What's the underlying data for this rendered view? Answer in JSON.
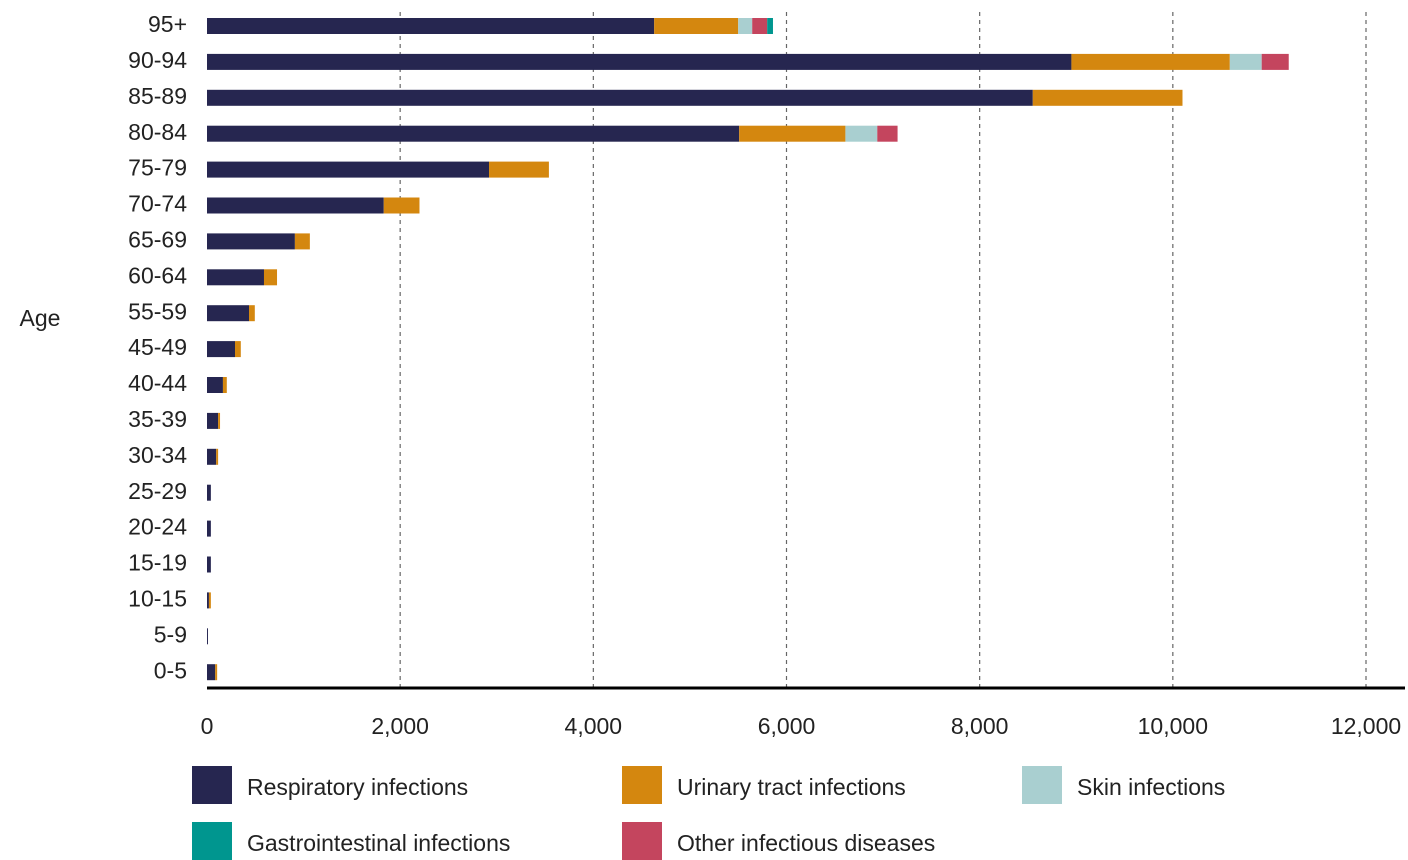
{
  "chart_data": {
    "type": "bar",
    "orientation": "horizontal",
    "stacked": true,
    "ylabel": "Age",
    "categories": [
      "95+",
      "90-94",
      "85-89",
      "80-84",
      "75-79",
      "70-74",
      "65-69",
      "60-64",
      "55-59",
      "45-49",
      "40-44",
      "35-39",
      "30-34",
      "25-29",
      "20-24",
      "15-19",
      "10-15",
      "5-9",
      "0-5"
    ],
    "series": [
      {
        "name": "Respiratory infections",
        "color": "#262650",
        "values": [
          4630,
          8950,
          8550,
          5510,
          2920,
          1830,
          910,
          590,
          435,
          290,
          165,
          115,
          95,
          40,
          40,
          40,
          20,
          10,
          85
        ]
      },
      {
        "name": "Urinary tract infections",
        "color": "#d4870f",
        "values": [
          870,
          1640,
          1550,
          1100,
          620,
          370,
          155,
          135,
          60,
          60,
          40,
          20,
          20,
          0,
          0,
          0,
          20,
          0,
          20
        ]
      },
      {
        "name": "Skin infections",
        "color": "#a9cfd0",
        "values": [
          145,
          330,
          0,
          330,
          0,
          0,
          0,
          0,
          0,
          0,
          0,
          0,
          0,
          0,
          0,
          0,
          0,
          0,
          0
        ]
      },
      {
        "name": "Gastrointestinal infections",
        "color": "#00968f",
        "values": [
          60,
          0,
          0,
          0,
          0,
          0,
          0,
          0,
          0,
          0,
          0,
          0,
          0,
          0,
          0,
          0,
          0,
          0,
          0
        ]
      },
      {
        "name": "Other infectious diseases",
        "color": "#c4455e",
        "values": [
          155,
          280,
          0,
          210,
          0,
          0,
          0,
          0,
          0,
          0,
          0,
          0,
          0,
          0,
          0,
          0,
          0,
          0,
          0
        ]
      }
    ],
    "xlim": [
      0,
      12000
    ],
    "xticks": [
      0,
      {
        "value": 2000,
        "label": "2,000"
      },
      {
        "value": 4000,
        "label": "4,000"
      },
      {
        "value": 6000,
        "label": "6,000"
      },
      {
        "value": 8000,
        "label": "8,000"
      },
      {
        "value": 10000,
        "label": "10,000"
      },
      {
        "value": 12000,
        "label": "12,000"
      }
    ],
    "grid": true
  }
}
